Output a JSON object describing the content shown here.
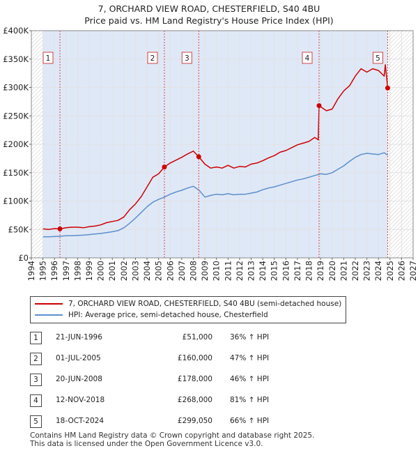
{
  "title": {
    "line1": "7, ORCHARD VIEW ROAD, CHESTERFIELD, S40 4BU",
    "line2": "Price paid vs. HM Land Registry's House Price Index (HPI)"
  },
  "colors": {
    "price_line": "#cc0000",
    "hpi_line": "#5b8fcc",
    "shade": "#dfe8f7",
    "marker_line": "#dd4444"
  },
  "legend": {
    "price_label": "7, ORCHARD VIEW ROAD, CHESTERFIELD, S40 4BU (semi-detached house)",
    "hpi_label": "HPI: Average price, semi-detached house, Chesterfield"
  },
  "sales": [
    {
      "num": "1",
      "date": "21-JUN-1996",
      "price": "£51,000",
      "hpi": "36% ↑ HPI"
    },
    {
      "num": "2",
      "date": "01-JUL-2005",
      "price": "£160,000",
      "hpi": "47% ↑ HPI"
    },
    {
      "num": "3",
      "date": "20-JUN-2008",
      "price": "£178,000",
      "hpi": "46% ↑ HPI"
    },
    {
      "num": "4",
      "date": "12-NOV-2018",
      "price": "£268,000",
      "hpi": "81% ↑ HPI"
    },
    {
      "num": "5",
      "date": "18-OCT-2024",
      "price": "£299,050",
      "hpi": "66% ↑ HPI"
    }
  ],
  "footer": {
    "line1": "Contains HM Land Registry data © Crown copyright and database right 2025.",
    "line2": "This data is licensed under the Open Government Licence v3.0."
  },
  "chart_data": {
    "type": "line",
    "title": "Price paid vs. HM Land Registry's House Price Index (HPI)",
    "xlabel": "",
    "ylabel": "",
    "xlim": [
      1994,
      2027
    ],
    "ylim": [
      0,
      400000
    ],
    "x_ticks": [
      "1994",
      "1995",
      "1996",
      "1997",
      "1998",
      "1999",
      "2000",
      "2001",
      "2002",
      "2003",
      "2004",
      "2005",
      "2006",
      "2007",
      "2008",
      "2009",
      "2010",
      "2011",
      "2012",
      "2013",
      "2014",
      "2015",
      "2016",
      "2017",
      "2018",
      "2019",
      "2020",
      "2021",
      "2022",
      "2023",
      "2024",
      "2025",
      "2026",
      "2027"
    ],
    "y_ticks": [
      {
        "value": 0,
        "label": "£0"
      },
      {
        "value": 50000,
        "label": "£50K"
      },
      {
        "value": 100000,
        "label": "£100K"
      },
      {
        "value": 150000,
        "label": "£150K"
      },
      {
        "value": 200000,
        "label": "£200K"
      },
      {
        "value": 250000,
        "label": "£250K"
      },
      {
        "value": 300000,
        "label": "£300K"
      },
      {
        "value": 350000,
        "label": "£350K"
      },
      {
        "value": 400000,
        "label": "£400K"
      }
    ],
    "grid": true,
    "shaded_range": [
      1995.0,
      2024.8
    ],
    "sale_markers": [
      {
        "label": "1",
        "x": 1996.47,
        "y": 51000
      },
      {
        "label": "2",
        "x": 2005.5,
        "y": 160000
      },
      {
        "label": "3",
        "x": 2008.47,
        "y": 178000
      },
      {
        "label": "4",
        "x": 2018.87,
        "y": 268000
      },
      {
        "label": "5",
        "x": 2024.8,
        "y": 299050
      }
    ],
    "series": [
      {
        "name": "7, ORCHARD VIEW ROAD, CHESTERFIELD, S40 4BU (semi-detached house)",
        "x": [
          1995.0,
          1995.5,
          1996.0,
          1996.47,
          1997.0,
          1997.5,
          1998.0,
          1998.5,
          1999.0,
          1999.5,
          2000.0,
          2000.5,
          2001.0,
          2001.5,
          2002.0,
          2002.5,
          2003.0,
          2003.5,
          2004.0,
          2004.5,
          2005.0,
          2005.5,
          2006.0,
          2006.5,
          2007.0,
          2007.5,
          2008.0,
          2008.47,
          2009.0,
          2009.5,
          2010.0,
          2010.5,
          2011.0,
          2011.5,
          2012.0,
          2012.5,
          2013.0,
          2013.5,
          2014.0,
          2014.5,
          2015.0,
          2015.5,
          2016.0,
          2016.5,
          2017.0,
          2017.5,
          2018.0,
          2018.5,
          2018.8,
          2018.87,
          2019.5,
          2020.0,
          2020.5,
          2021.0,
          2021.5,
          2022.0,
          2022.5,
          2023.0,
          2023.5,
          2024.0,
          2024.5,
          2024.6,
          2024.8
        ],
        "y": [
          51000,
          50000,
          51500,
          51000,
          53000,
          54000,
          54000,
          53000,
          55000,
          56000,
          58000,
          62000,
          64000,
          66000,
          72000,
          85000,
          95000,
          108000,
          125000,
          142000,
          148000,
          160000,
          167000,
          172000,
          177000,
          183000,
          188000,
          178000,
          165000,
          158000,
          160000,
          158000,
          163000,
          158000,
          161000,
          160000,
          165000,
          167000,
          171000,
          176000,
          180000,
          186000,
          189000,
          194000,
          199000,
          202000,
          205000,
          212000,
          208000,
          268000,
          259000,
          262000,
          280000,
          294000,
          303000,
          320000,
          333000,
          327000,
          333000,
          330000,
          320000,
          340000,
          299050
        ]
      },
      {
        "name": "HPI: Average price, semi-detached house, Chesterfield",
        "x": [
          1995.0,
          1995.5,
          1996.0,
          1996.5,
          1997.0,
          1997.5,
          1998.0,
          1998.5,
          1999.0,
          1999.5,
          2000.0,
          2000.5,
          2001.0,
          2001.5,
          2002.0,
          2002.5,
          2003.0,
          2003.5,
          2004.0,
          2004.5,
          2005.0,
          2005.5,
          2006.0,
          2006.5,
          2007.0,
          2007.5,
          2008.0,
          2008.5,
          2009.0,
          2009.5,
          2010.0,
          2010.5,
          2011.0,
          2011.5,
          2012.0,
          2012.5,
          2013.0,
          2013.5,
          2014.0,
          2014.5,
          2015.0,
          2015.5,
          2016.0,
          2016.5,
          2017.0,
          2017.5,
          2018.0,
          2018.5,
          2019.0,
          2019.5,
          2020.0,
          2020.5,
          2021.0,
          2021.5,
          2022.0,
          2022.5,
          2023.0,
          2023.5,
          2024.0,
          2024.5,
          2024.8
        ],
        "y": [
          37000,
          37000,
          37500,
          38000,
          39000,
          39000,
          39500,
          40000,
          41000,
          42000,
          43000,
          44500,
          46000,
          48000,
          53000,
          61000,
          70000,
          80000,
          90000,
          98000,
          103000,
          107000,
          112000,
          116000,
          119000,
          123000,
          126000,
          119000,
          107000,
          110000,
          112000,
          111000,
          113000,
          111000,
          112000,
          112000,
          114000,
          116000,
          120000,
          123000,
          125000,
          128000,
          131000,
          134000,
          137000,
          139000,
          142000,
          145000,
          148000,
          147000,
          150000,
          156000,
          162000,
          170000,
          177000,
          182000,
          184000,
          183000,
          182000,
          185000,
          181000
        ]
      }
    ]
  }
}
